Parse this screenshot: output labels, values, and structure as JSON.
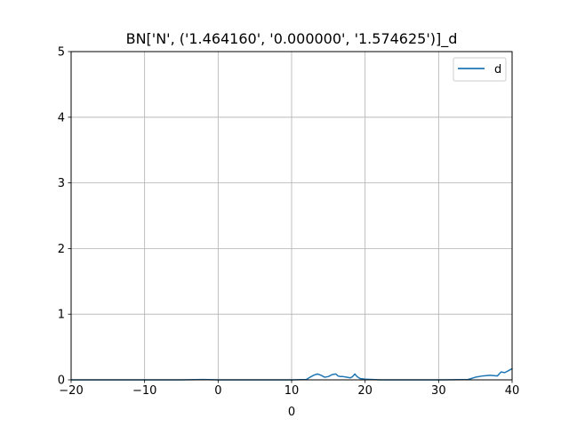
{
  "chart_data": {
    "type": "line",
    "title": "BN['N', ('1.464160', '0.000000', '1.574625')]_d",
    "xlabel": "0",
    "ylabel": "",
    "xlim": [
      -20,
      40
    ],
    "ylim": [
      0,
      5
    ],
    "x_ticks": [
      -20,
      -10,
      0,
      10,
      20,
      30,
      40
    ],
    "x_tick_labels": [
      "−20",
      "−10",
      "0",
      "10",
      "20",
      "30",
      "40"
    ],
    "y_ticks": [
      0,
      1,
      2,
      3,
      4,
      5
    ],
    "y_tick_labels": [
      "0",
      "1",
      "2",
      "3",
      "4",
      "5"
    ],
    "grid": true,
    "legend_position": "top-right",
    "series": [
      {
        "name": "d",
        "color": "#1f77b4",
        "x": [
          -20,
          -15,
          -10,
          -5,
          -2,
          0,
          5,
          10,
          12,
          12.5,
          13,
          13.5,
          14,
          14.5,
          15,
          15.5,
          16,
          16.3,
          16.6,
          17,
          17.5,
          18,
          18.3,
          18.6,
          18.9,
          19.3,
          20,
          22,
          25,
          30,
          34,
          35,
          36,
          37,
          38,
          38.5,
          39,
          39.5,
          40
        ],
        "y": [
          0,
          0,
          0,
          0,
          0.005,
          0,
          0,
          0,
          0.005,
          0.04,
          0.07,
          0.09,
          0.07,
          0.04,
          0.05,
          0.08,
          0.09,
          0.06,
          0.05,
          0.05,
          0.04,
          0.03,
          0.05,
          0.09,
          0.05,
          0.02,
          0.01,
          0,
          0,
          0,
          0.005,
          0.04,
          0.06,
          0.07,
          0.06,
          0.12,
          0.11,
          0.14,
          0.17
        ]
      }
    ]
  }
}
